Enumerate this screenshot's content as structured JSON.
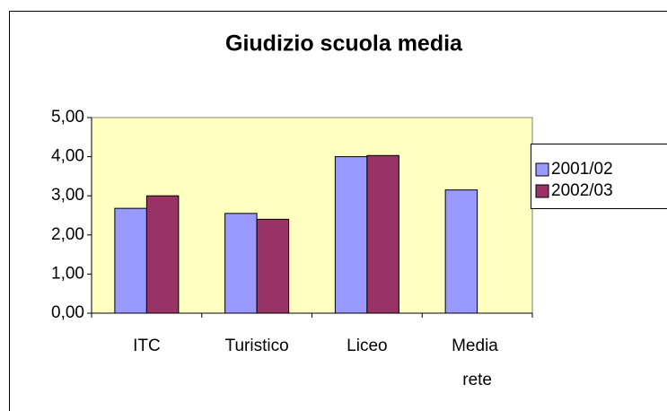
{
  "chart_data": {
    "type": "bar",
    "title": "Giudizio scuola media",
    "categories": [
      "ITC",
      "Turistico",
      "Liceo",
      "Media rete"
    ],
    "series": [
      {
        "name": "2001/02",
        "color": "#9999ff",
        "values": [
          2.68,
          2.55,
          4.0,
          3.15
        ]
      },
      {
        "name": "2002/03",
        "color": "#993366",
        "values": [
          3.0,
          2.4,
          4.03,
          null
        ]
      }
    ],
    "ylim": [
      0,
      5
    ],
    "yticks": [
      {
        "value": 0,
        "label": "0,00"
      },
      {
        "value": 1,
        "label": "1,00"
      },
      {
        "value": 2,
        "label": "2,00"
      },
      {
        "value": 3,
        "label": "3,00"
      },
      {
        "value": 4,
        "label": "4,00"
      },
      {
        "value": 5,
        "label": "5,00"
      }
    ],
    "legend": "right"
  }
}
